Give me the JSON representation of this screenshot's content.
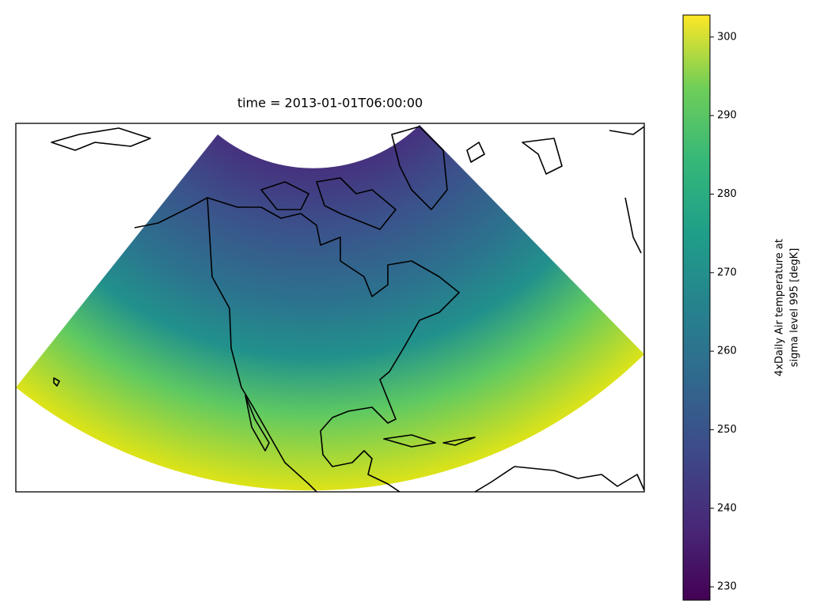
{
  "chart_data": {
    "type": "map",
    "title": "time = 2013-01-01T06:00:00",
    "colorbar": {
      "label": [
        "4xDaily Air temperature at",
        "sigma level 995 [degK]"
      ],
      "lim": [
        228.3,
        302.8
      ],
      "ticks": [
        230,
        240,
        250,
        260,
        270,
        280,
        290,
        300
      ]
    }
  }
}
